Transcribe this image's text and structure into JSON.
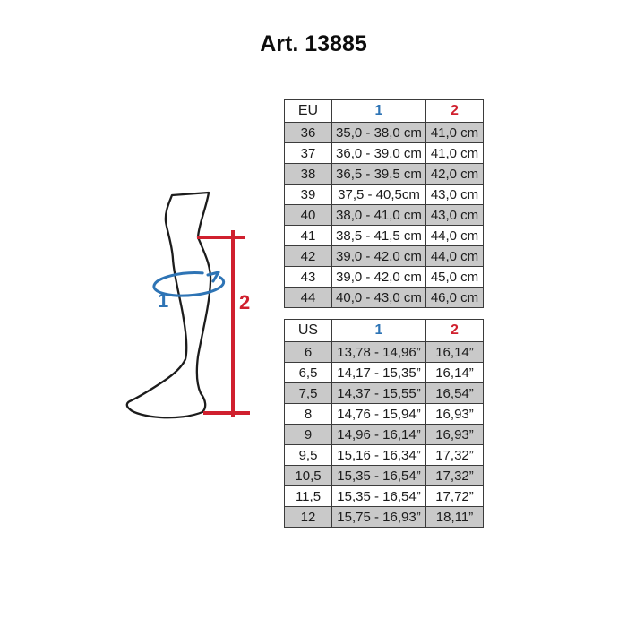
{
  "page": {
    "title": "Art. 13885"
  },
  "diagram": {
    "label_1": "1",
    "label_2": "2",
    "colors": {
      "measure_1_blue": "#2e74b5",
      "measure_2_red": "#d0202e",
      "leg_outline": "#1c1c1c",
      "row_gray": "#c9c9c9"
    }
  },
  "chart_data": [
    {
      "type": "table",
      "columns": [
        "EU",
        "1",
        "2"
      ],
      "rows": [
        [
          "36",
          "35,0 - 38,0 cm",
          "41,0 cm"
        ],
        [
          "37",
          "36,0 - 39,0 cm",
          "41,0 cm"
        ],
        [
          "38",
          "36,5 - 39,5 cm",
          "42,0 cm"
        ],
        [
          "39",
          "37,5 - 40,5cm",
          "43,0 cm"
        ],
        [
          "40",
          "38,0 - 41,0 cm",
          "43,0 cm"
        ],
        [
          "41",
          "38,5 - 41,5 cm",
          "44,0 cm"
        ],
        [
          "42",
          "39,0 - 42,0 cm",
          "44,0 cm"
        ],
        [
          "43",
          "39,0 - 42,0 cm",
          "45,0 cm"
        ],
        [
          "44",
          "40,0 - 43,0 cm",
          "46,0 cm"
        ]
      ]
    },
    {
      "type": "table",
      "columns": [
        "US",
        "1",
        "2"
      ],
      "rows": [
        [
          "6",
          "13,78 - 14,96”",
          "16,14”"
        ],
        [
          "6,5",
          "14,17 - 15,35”",
          "16,14”"
        ],
        [
          "7,5",
          "14,37 - 15,55”",
          "16,54”"
        ],
        [
          "8",
          "14,76 - 15,94”",
          "16,93”"
        ],
        [
          "9",
          "14,96 - 16,14”",
          "16,93”"
        ],
        [
          "9,5",
          "15,16 - 16,34”",
          "17,32”"
        ],
        [
          "10,5",
          "15,35 - 16,54”",
          "17,32”"
        ],
        [
          "11,5",
          "15,35 - 16,54”",
          "17,72”"
        ],
        [
          "12",
          "15,75 - 16,93”",
          "18,11”"
        ]
      ]
    }
  ]
}
